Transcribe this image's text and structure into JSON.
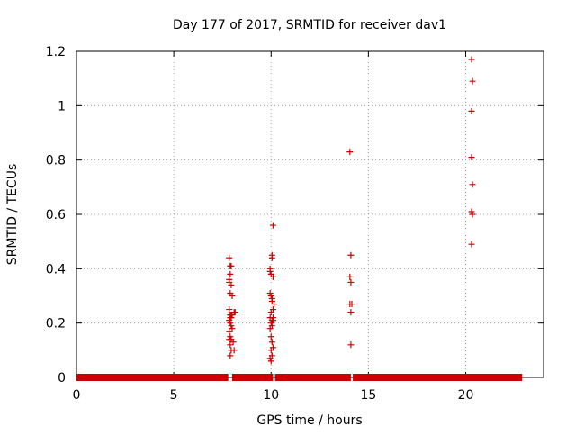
{
  "chart_data": {
    "type": "scatter",
    "title": "Day 177 of 2017, SRMTID for receiver dav1",
    "xlabel": "GPS time / hours",
    "ylabel": "SRMTID / TECUs",
    "xlim": [
      0,
      24
    ],
    "ylim": [
      0,
      1.2
    ],
    "xticks": [
      0,
      5,
      10,
      15,
      20
    ],
    "xtick_labels": [
      "0",
      "5",
      "10",
      "15",
      "20"
    ],
    "yticks": [
      0,
      0.2,
      0.4,
      0.6,
      0.8,
      1,
      1.2
    ],
    "ytick_labels": [
      "0",
      "0.2",
      "0.4",
      "0.6",
      "0.8",
      "1",
      "1.2"
    ],
    "grid": true,
    "legend": "none",
    "marker": "plus",
    "color": "#cc0000",
    "baseline_series": {
      "name": "near-zero points",
      "y": 0,
      "x_segments": [
        [
          0.0,
          7.8
        ],
        [
          8.0,
          10.1
        ],
        [
          10.2,
          14.1
        ],
        [
          14.2,
          22.9
        ]
      ]
    },
    "series": [
      {
        "name": "SRMTID",
        "x": [
          7.85,
          7.9,
          7.95,
          7.9,
          7.85,
          7.95,
          7.9,
          8.0,
          7.85,
          7.9,
          7.95,
          7.9,
          7.85,
          8.1,
          7.9,
          7.95,
          8.0,
          7.85,
          7.9,
          7.95,
          8.05,
          7.9,
          7.85,
          7.95,
          8.1,
          7.9,
          8.15,
          7.95,
          7.85,
          8.0,
          9.95,
          10.05,
          10.1,
          9.95,
          10.0,
          10.05,
          10.1,
          9.95,
          10.0,
          10.05,
          10.15,
          10.1,
          10.0,
          9.95,
          10.05,
          10.1,
          10.0,
          10.05,
          9.95,
          10.0,
          10.05,
          10.1,
          10.0,
          10.05,
          9.95,
          10.0,
          10.1,
          10.05,
          14.05,
          14.1,
          14.05,
          14.1,
          14.15,
          14.1,
          14.05,
          14.1,
          20.3,
          20.35,
          20.3,
          20.3,
          20.35,
          20.3,
          20.35,
          20.3
        ],
        "y": [
          0.44,
          0.41,
          0.41,
          0.38,
          0.35,
          0.34,
          0.31,
          0.3,
          0.25,
          0.23,
          0.23,
          0.22,
          0.21,
          0.24,
          0.2,
          0.19,
          0.18,
          0.17,
          0.15,
          0.14,
          0.13,
          0.12,
          0.14,
          0.1,
          0.1,
          0.08,
          0.24,
          0.22,
          0.36,
          0.23,
          0.4,
          0.44,
          0.56,
          0.39,
          0.38,
          0.45,
          0.37,
          0.31,
          0.3,
          0.29,
          0.27,
          0.25,
          0.24,
          0.22,
          0.21,
          0.21,
          0.2,
          0.19,
          0.18,
          0.15,
          0.13,
          0.11,
          0.1,
          0.08,
          0.07,
          0.06,
          0.22,
          0.28,
          0.83,
          0.45,
          0.37,
          0.35,
          0.27,
          0.24,
          0.27,
          0.12,
          1.17,
          1.09,
          0.98,
          0.81,
          0.71,
          0.61,
          0.6,
          0.49
        ]
      }
    ]
  }
}
